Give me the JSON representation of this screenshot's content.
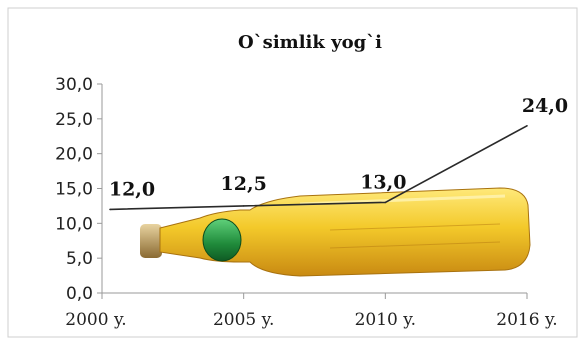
{
  "chart_data": {
    "type": "line",
    "title": "O`simlik yog`i",
    "categories": [
      "2000 y.",
      "2005 y.",
      "2010 y.",
      "2016 y."
    ],
    "series": [
      {
        "values": [
          12.0,
          12.5,
          13.0,
          24.0
        ]
      }
    ],
    "data_labels": [
      "12,0",
      "12,5",
      "13,0",
      "24,0"
    ],
    "y_ticks": [
      "0,0",
      "5,0",
      "10,0",
      "15,0",
      "20,0",
      "25,0",
      "30,0"
    ],
    "ylim": [
      0,
      30
    ],
    "grid": false,
    "legend": "none",
    "colors": {
      "line": "#2a2a2a",
      "oil_light": "#f3d23a",
      "oil_dark": "#c98a12",
      "cap": "#1f8a3a",
      "cork": "#b08a4a"
    },
    "icons": [
      "oil-bottle-illustration"
    ]
  }
}
